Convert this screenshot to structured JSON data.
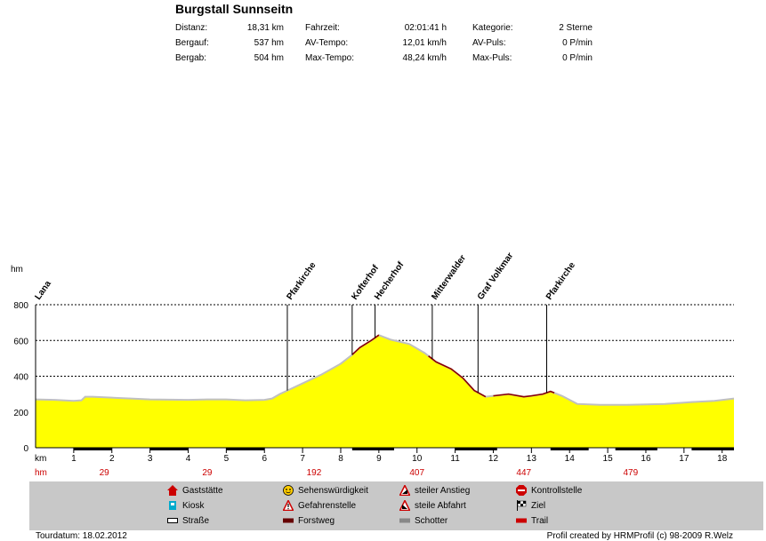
{
  "title": "Burgstall Sunnseitn",
  "stats": [
    {
      "label": "Distanz:",
      "value": "18,31 km"
    },
    {
      "label": "Bergauf:",
      "value": "537 hm"
    },
    {
      "label": "Bergab:",
      "value": "504 hm"
    },
    {
      "label": "Fahrzeit:",
      "value": "02:01:41 h"
    },
    {
      "label": "AV-Tempo:",
      "value": "12,01 km/h"
    },
    {
      "label": "Max-Tempo:",
      "value": "48,24 km/h"
    },
    {
      "label": "Kategorie:",
      "value": "2 Sterne"
    },
    {
      "label": "AV-Puls:",
      "value": "0 P/min"
    },
    {
      "label": "Max-Puls:",
      "value": "0 P/min"
    }
  ],
  "chart_data": {
    "type": "area",
    "ylabel": "hm",
    "xlabel": "km",
    "xlim": [
      0,
      18.31
    ],
    "ylim": [
      0,
      800
    ],
    "yticks": [
      0,
      200,
      400,
      600,
      800
    ],
    "xticks": [
      1,
      2,
      3,
      4,
      5,
      6,
      7,
      8,
      9,
      10,
      11,
      12,
      13,
      14,
      15,
      16,
      17,
      18
    ],
    "grid": true,
    "fill_color": "#ffff00",
    "line_color": "#c0c0c0",
    "steep_color": "#8b0000",
    "profile": [
      [
        0,
        270
      ],
      [
        0.5,
        268
      ],
      [
        1,
        262
      ],
      [
        1.2,
        265
      ],
      [
        1.3,
        285
      ],
      [
        1.5,
        285
      ],
      [
        2,
        280
      ],
      [
        2.5,
        275
      ],
      [
        3,
        270
      ],
      [
        4,
        268
      ],
      [
        4.5,
        270
      ],
      [
        5,
        270
      ],
      [
        5.5,
        265
      ],
      [
        6,
        268
      ],
      [
        6.2,
        275
      ],
      [
        6.4,
        300
      ],
      [
        6.6,
        320
      ],
      [
        7,
        360
      ],
      [
        7.5,
        410
      ],
      [
        8,
        470
      ],
      [
        8.3,
        520
      ],
      [
        8.5,
        560
      ],
      [
        8.8,
        600
      ],
      [
        9,
        630
      ],
      [
        9.3,
        605
      ],
      [
        9.8,
        580
      ],
      [
        10.2,
        530
      ],
      [
        10.5,
        480
      ],
      [
        10.9,
        440
      ],
      [
        11.2,
        390
      ],
      [
        11.5,
        320
      ],
      [
        11.8,
        285
      ],
      [
        12,
        290
      ],
      [
        12.4,
        300
      ],
      [
        12.8,
        285
      ],
      [
        13,
        290
      ],
      [
        13.3,
        300
      ],
      [
        13.5,
        315
      ],
      [
        13.8,
        290
      ],
      [
        14.2,
        245
      ],
      [
        14.8,
        240
      ],
      [
        15.5,
        240
      ],
      [
        16.5,
        245
      ],
      [
        17.2,
        255
      ],
      [
        17.8,
        262
      ],
      [
        18.31,
        275
      ]
    ],
    "steep_sections": [
      [
        8.3,
        9.0
      ],
      [
        10.3,
        11.8
      ],
      [
        12.0,
        13.6
      ]
    ],
    "waypoints": [
      {
        "km": 0,
        "name": "Lana"
      },
      {
        "km": 6.6,
        "name": "Pfarkirche"
      },
      {
        "km": 8.3,
        "name": "Kofterhof"
      },
      {
        "km": 8.9,
        "name": "Hecherhof"
      },
      {
        "km": 10.4,
        "name": "Mitterwalder"
      },
      {
        "km": 11.6,
        "name": "Graf Volkmar"
      },
      {
        "km": 13.4,
        "name": "Pfarkirche"
      }
    ],
    "hm_markers": [
      {
        "km": 1.8,
        "label": "29"
      },
      {
        "km": 4.5,
        "label": "29"
      },
      {
        "km": 7.3,
        "label": "192"
      },
      {
        "km": 10.0,
        "label": "407"
      },
      {
        "km": 12.8,
        "label": "447"
      },
      {
        "km": 15.6,
        "label": "479"
      }
    ],
    "surface_segments": [
      [
        1,
        2.0
      ],
      [
        3,
        4.0
      ],
      [
        5,
        6.0
      ],
      [
        8.3,
        9.4
      ],
      [
        11,
        12.1
      ],
      [
        13.5,
        14.5
      ],
      [
        15.2,
        16.3
      ],
      [
        17.2,
        18.31
      ]
    ]
  },
  "legend": [
    {
      "label": "Gaststätte",
      "icon": "house-icon",
      "color": "#cc0000"
    },
    {
      "label": "Kiosk",
      "icon": "kiosk-icon",
      "color": "#00aacc"
    },
    {
      "label": "Straße",
      "icon": "road-icon",
      "color": "#ffffff"
    },
    {
      "label": "Sehenswürdigkeit",
      "icon": "smiley-icon",
      "color": "#ffcc00"
    },
    {
      "label": "Gefahrenstelle",
      "icon": "warning-icon",
      "color": "#cc0000"
    },
    {
      "label": "Forstweg",
      "icon": "forest-road-icon",
      "color": "#660000"
    },
    {
      "label": "steiler Anstieg",
      "icon": "steep-up-icon",
      "color": "#cc0000"
    },
    {
      "label": "steile Abfahrt",
      "icon": "steep-down-icon",
      "color": "#cc0000"
    },
    {
      "label": "Schotter",
      "icon": "gravel-icon",
      "color": "#888888"
    },
    {
      "label": "Kontrollstelle",
      "icon": "stop-icon",
      "color": "#cc0000"
    },
    {
      "label": "Ziel",
      "icon": "finish-flag-icon",
      "color": "#000000"
    },
    {
      "label": "Trail",
      "icon": "trail-icon",
      "color": "#cc0000"
    }
  ],
  "footer": {
    "date": "Tourdatum: 18.02.2012",
    "credit": "Profil created by HRMProfil (c) 98-2009 R.Welz"
  }
}
